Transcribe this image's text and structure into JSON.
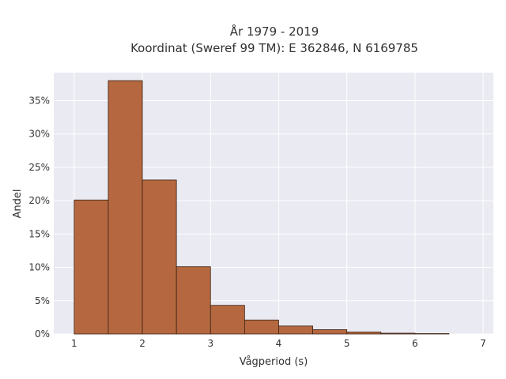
{
  "chart_data": {
    "type": "bar",
    "title_lines": [
      "År 1979 - 2019",
      "Koordinat (Sweref 99 TM): E 362846, N 6169785"
    ],
    "xlabel": "Vågperiod (s)",
    "ylabel": "Andel",
    "bin_edges": [
      1.0,
      1.5,
      2.0,
      2.5,
      3.0,
      3.5,
      4.0,
      4.5,
      5.0,
      5.5,
      6.0,
      6.5
    ],
    "values": [
      20.1,
      38.0,
      23.1,
      10.1,
      4.3,
      2.1,
      1.2,
      0.65,
      0.3,
      0.12,
      0.06
    ],
    "xlim": [
      0.7,
      7.15
    ],
    "ylim": [
      0,
      39.2
    ],
    "x_ticks": [
      1,
      2,
      3,
      4,
      5,
      6,
      7
    ],
    "x_tick_labels": [
      "1",
      "2",
      "3",
      "4",
      "5",
      "6",
      "7"
    ],
    "y_ticks": [
      0,
      5,
      10,
      15,
      20,
      25,
      30,
      35
    ],
    "y_tick_labels": [
      "0%",
      "5%",
      "10%",
      "15%",
      "20%",
      "25%",
      "30%",
      "35%"
    ],
    "grid": true,
    "colors": {
      "bar_fill": "#b5683f",
      "bar_edge": "#3b2216",
      "plot_bg": "#eaeaf2",
      "grid": "#ffffff"
    }
  }
}
